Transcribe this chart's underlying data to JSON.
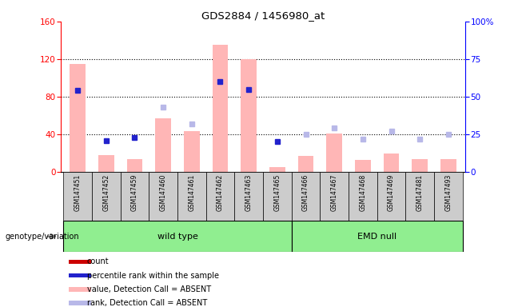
{
  "title": "GDS2884 / 1456980_at",
  "samples": [
    "GSM147451",
    "GSM147452",
    "GSM147459",
    "GSM147460",
    "GSM147461",
    "GSM147462",
    "GSM147463",
    "GSM147465",
    "GSM147466",
    "GSM147467",
    "GSM147468",
    "GSM147469",
    "GSM147481",
    "GSM147493"
  ],
  "absent_value_bars": [
    115,
    18,
    14,
    57,
    43,
    135,
    120,
    5,
    17,
    41,
    13,
    20,
    14,
    14
  ],
  "absent_rank_dots_pct": [
    null,
    null,
    null,
    43,
    32,
    null,
    null,
    null,
    25,
    29,
    22,
    27,
    22,
    25
  ],
  "rank_dots_pct": [
    54,
    21,
    23,
    null,
    null,
    60,
    55,
    20,
    null,
    null,
    null,
    null,
    null,
    null
  ],
  "n_wild_type": 8,
  "left_ylim": [
    0,
    160
  ],
  "right_ylim": [
    0,
    100
  ],
  "left_yticks": [
    0,
    40,
    80,
    120,
    160
  ],
  "right_yticks": [
    0,
    25,
    50,
    75,
    100
  ],
  "right_yticklabels": [
    "0",
    "25",
    "50",
    "75",
    "100%"
  ],
  "absent_value_color": "#ffb6b6",
  "absent_rank_color": "#b8b8e8",
  "rank_color": "#2222cc",
  "wild_type_label": "wild type",
  "emd_null_label": "EMD null",
  "genotype_label": "genotype/variation",
  "green_color": "#90ee90",
  "legend_items": [
    {
      "label": "count",
      "color": "#cc0000"
    },
    {
      "label": "percentile rank within the sample",
      "color": "#2222cc"
    },
    {
      "label": "value, Detection Call = ABSENT",
      "color": "#ffb6b6"
    },
    {
      "label": "rank, Detection Call = ABSENT",
      "color": "#b8b8e8"
    }
  ]
}
